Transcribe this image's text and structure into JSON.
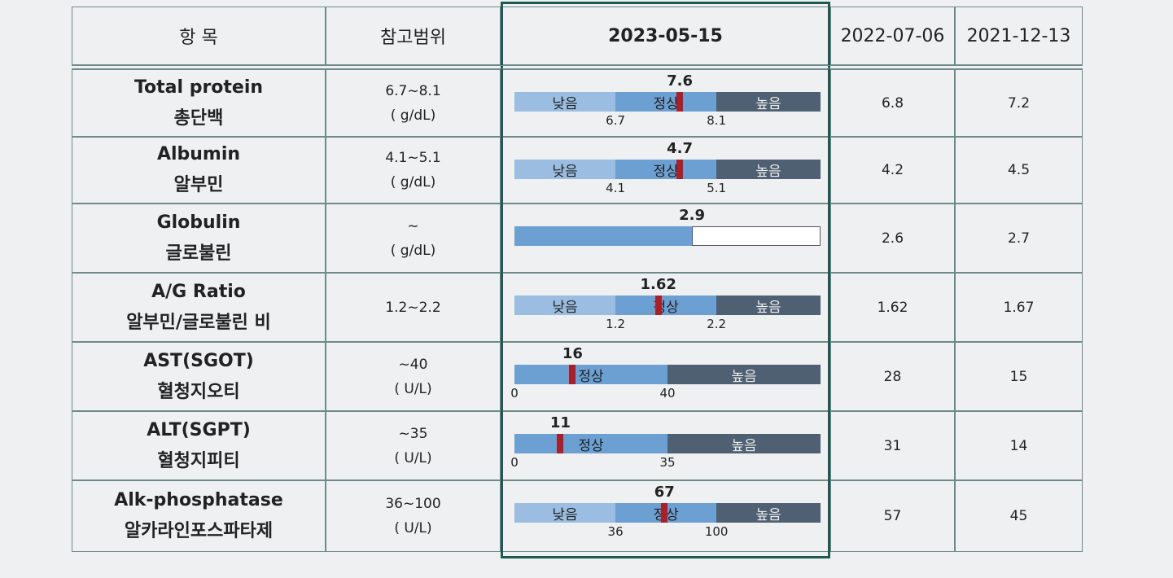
{
  "header": [
    "항   목",
    "참고범위",
    "2023-05-15",
    "2022-07-06",
    "2021-12-13"
  ],
  "rows": [
    {
      "name_en": "Total protein",
      "name_ko": "총단백",
      "range": "6.7~8.1",
      "unit": "( g/dL)",
      "current": 7.6,
      "bar": {
        "labels": [
          "낮음",
          "정상",
          "높음"
        ],
        "ticks": [
          6.7,
          8.1
        ]
      },
      "prev1": 6.8,
      "prev2": 7.2
    },
    {
      "name_en": "Albumin",
      "name_ko": "알부민",
      "range": "4.1~5.1",
      "unit": "( g/dL)",
      "current": 4.7,
      "bar": {
        "labels": [
          "낮음",
          "정상",
          "높음"
        ],
        "ticks": [
          4.1,
          5.1
        ]
      },
      "prev1": 4.2,
      "prev2": 4.5
    },
    {
      "name_en": "Globulin",
      "name_ko": "글로불린",
      "range": "~",
      "unit": "( g/dL)",
      "current": 2.9,
      "bar": {
        "labels": [],
        "ticks": []
      },
      "prev1": 2.6,
      "prev2": 2.7
    },
    {
      "name_en": "A/G Ratio",
      "name_ko": "알부민/글로불린 비",
      "range": "1.2~2.2",
      "current": 1.62,
      "bar": {
        "labels": [
          "낮음",
          "정상",
          "높음"
        ],
        "ticks": [
          1.2,
          2.2
        ]
      },
      "prev1": 1.62,
      "prev2": 1.67
    },
    {
      "name_en": "AST(SGOT)",
      "name_ko": "혈청지오티",
      "range": "~40",
      "unit": "( U/L)",
      "current": 16,
      "bar": {
        "labels": [
          "정상",
          "높음"
        ],
        "ticks": [
          0,
          40
        ]
      },
      "prev1": 28,
      "prev2": 15
    },
    {
      "name_en": "ALT(SGPT)",
      "name_ko": "혈청지피티",
      "range": "~35",
      "unit": "( U/L)",
      "current": 11,
      "bar": {
        "labels": [
          "정상",
          "높음"
        ],
        "ticks": [
          0,
          35
        ]
      },
      "prev1": 31,
      "prev2": 14
    },
    {
      "name_en": "Alk-phosphatase",
      "name_ko": "알카라인포스파타제",
      "range": "36~100",
      "unit": "( U/L)",
      "current": 67,
      "bar": {
        "labels": [
          "낮음",
          "정상",
          "높음"
        ],
        "ticks": [
          36,
          100
        ]
      },
      "prev1": 57,
      "prev2": 45
    }
  ]
}
